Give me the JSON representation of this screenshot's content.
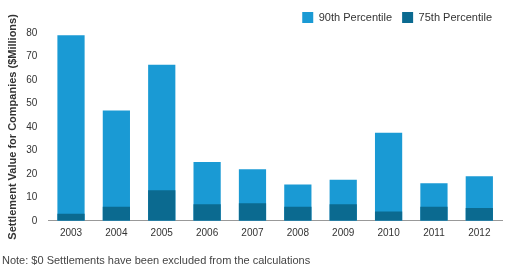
{
  "chart_data": {
    "type": "bar",
    "y_label": "Settlement Value for Companies ($Millions)",
    "note": "Note: $0 Settlements have been excluded from the calculations",
    "categories": [
      "2003",
      "2004",
      "2005",
      "2006",
      "2007",
      "2008",
      "2009",
      "2010",
      "2011",
      "2012"
    ],
    "series": [
      {
        "name": "90th Percentile",
        "color": "#1a9ad4",
        "values": [
          79,
          47,
          66.5,
          25,
          22,
          15.5,
          17.5,
          37.5,
          16,
          19
        ]
      },
      {
        "name": "75th Percentile",
        "color": "#0b6a90",
        "values": [
          3,
          6,
          13,
          7,
          7.5,
          6,
          7,
          4,
          6,
          5.5
        ]
      }
    ],
    "ylim": [
      0,
      80
    ],
    "yticks": [
      0,
      10,
      20,
      30,
      40,
      50,
      60,
      70,
      80
    ],
    "grid": false,
    "stacked": false,
    "legend": "top-right"
  }
}
